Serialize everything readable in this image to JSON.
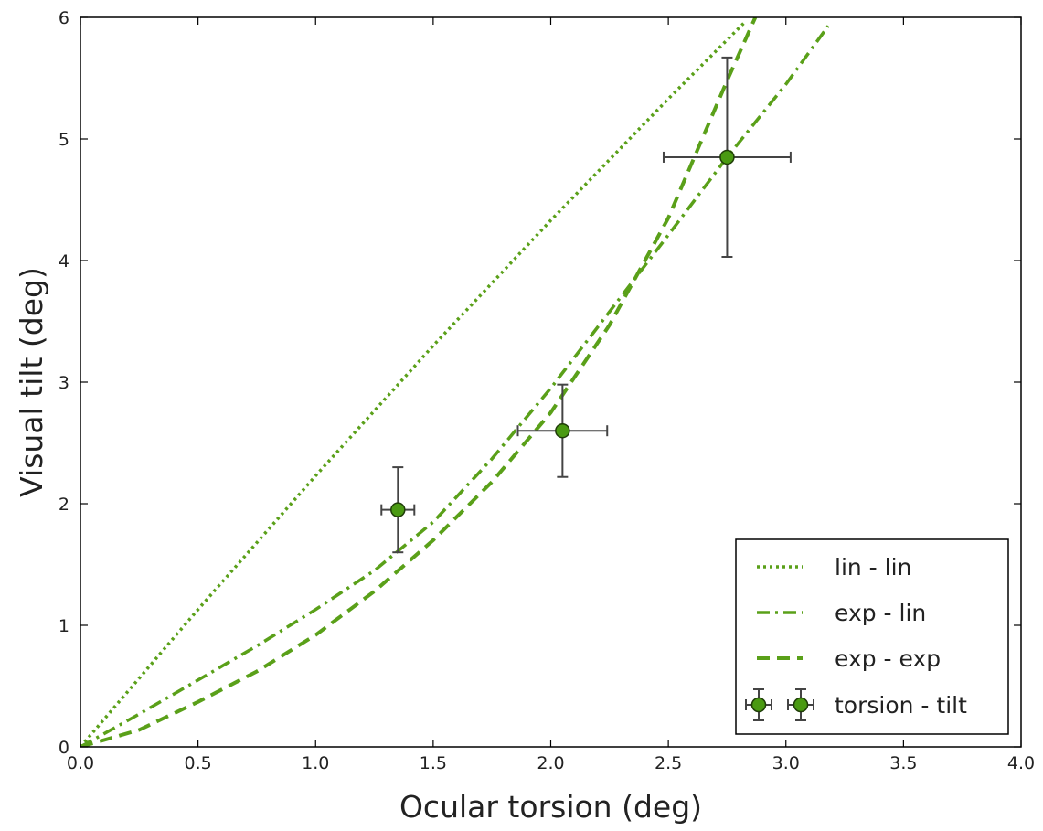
{
  "chart_data": {
    "type": "line",
    "title": "",
    "xlabel": "Ocular torsion (deg)",
    "ylabel": "Visual tilt (deg)",
    "xlim": [
      0.0,
      4.0
    ],
    "ylim": [
      0,
      6
    ],
    "x_ticks": [
      "0.0",
      "0.5",
      "1.0",
      "1.5",
      "2.0",
      "2.5",
      "3.0",
      "3.5",
      "4.0"
    ],
    "y_ticks": [
      "0",
      "1",
      "2",
      "3",
      "4",
      "5",
      "6"
    ],
    "grid": false,
    "legend_position": "lower-right",
    "accent_color": "#5aa019",
    "marker_color": "#4a9a12",
    "errorbar_color": "#444444",
    "series": [
      {
        "name": "lin - lin",
        "style": "dotted",
        "x": [
          0.0,
          0.5,
          1.0,
          1.5,
          2.0,
          2.5,
          2.82
        ],
        "y": [
          0.0,
          1.13,
          2.23,
          3.3,
          4.33,
          5.33,
          5.95
        ]
      },
      {
        "name": "exp - lin",
        "style": "dashdot",
        "x": [
          0.0,
          0.25,
          0.5,
          0.75,
          1.0,
          1.25,
          1.5,
          1.75,
          2.0,
          2.25,
          2.5,
          2.75,
          3.0,
          3.18
        ],
        "y": [
          0.0,
          0.27,
          0.55,
          0.83,
          1.13,
          1.45,
          1.85,
          2.37,
          2.95,
          3.58,
          4.21,
          4.85,
          5.45,
          5.93
        ]
      },
      {
        "name": "exp - exp",
        "style": "dashed",
        "x": [
          0.0,
          0.25,
          0.5,
          0.75,
          1.0,
          1.25,
          1.5,
          1.75,
          2.0,
          2.25,
          2.5,
          2.75,
          2.87
        ],
        "y": [
          0.0,
          0.14,
          0.37,
          0.62,
          0.92,
          1.28,
          1.7,
          2.18,
          2.75,
          3.47,
          4.35,
          5.48,
          6.0
        ]
      },
      {
        "name": "torsion - tilt",
        "style": "errorbar",
        "points": [
          {
            "x": 1.35,
            "y": 1.95,
            "xerr": 0.07,
            "yerr": 0.35
          },
          {
            "x": 2.05,
            "y": 2.6,
            "xerr": 0.19,
            "yerr": 0.38
          },
          {
            "x": 2.75,
            "y": 4.85,
            "xerr": 0.27,
            "yerr": 0.82
          }
        ]
      }
    ]
  }
}
